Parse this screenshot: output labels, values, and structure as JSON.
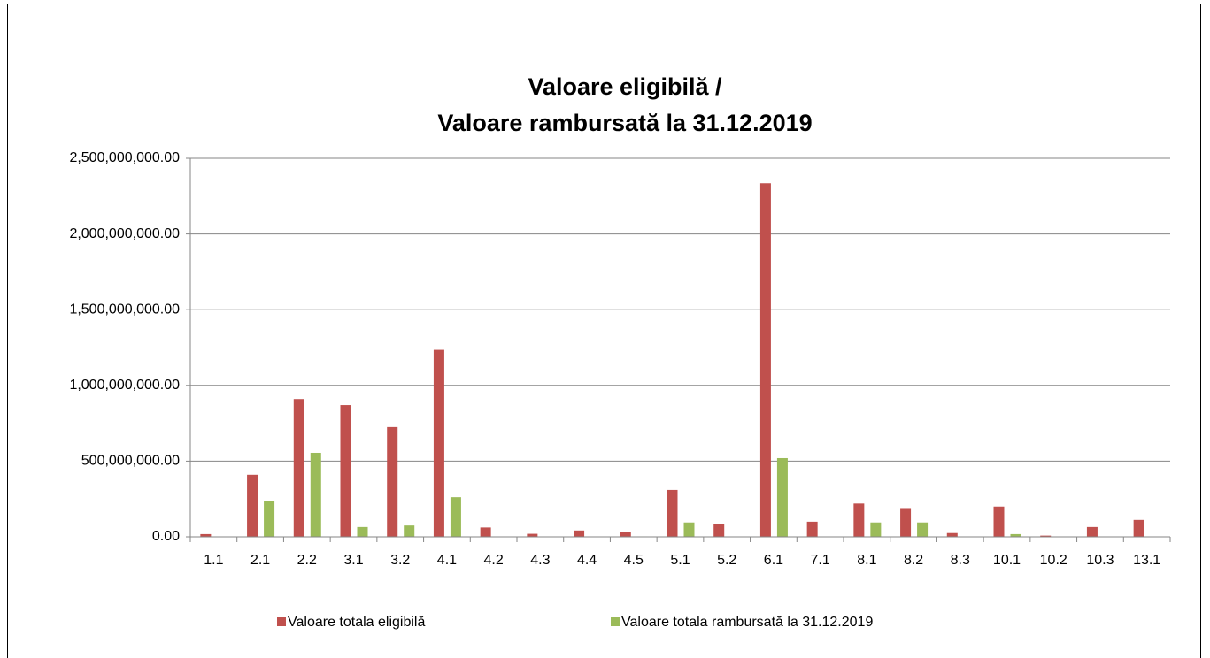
{
  "chart_data": {
    "type": "bar",
    "title_lines": [
      "Valoare eligibilă  /",
      "Valoare rambursată la 31.12.2019"
    ],
    "categories": [
      "1.1",
      "2.1",
      "2.2",
      "3.1",
      "3.2",
      "4.1",
      "4.2",
      "4.3",
      "4.4",
      "4.5",
      "5.1",
      "5.2",
      "6.1",
      "7.1",
      "8.1",
      "8.2",
      "8.3",
      "10.1",
      "10.2",
      "10.3",
      "13.1"
    ],
    "series": [
      {
        "name": "Valoare totala eligibilă",
        "color": "#c0504d",
        "values": [
          18000000,
          410000000,
          910000000,
          870000000,
          725000000,
          1235000000,
          62000000,
          20000000,
          42000000,
          33000000,
          310000000,
          82000000,
          2335000000,
          100000000,
          220000000,
          190000000,
          25000000,
          200000000,
          8000000,
          65000000,
          112000000
        ]
      },
      {
        "name": "Valoare totala rambursată la 31.12.2019",
        "color": "#9bbb59",
        "values": [
          0,
          235000000,
          555000000,
          65000000,
          75000000,
          262000000,
          0,
          0,
          0,
          3000000,
          95000000,
          2000000,
          520000000,
          0,
          95000000,
          95000000,
          0,
          18000000,
          0,
          0,
          0
        ]
      }
    ],
    "ylim": [
      0,
      2500000000
    ],
    "yticks": [
      {
        "value": 0,
        "label": "0.00"
      },
      {
        "value": 500000000,
        "label": "500,000,000.00"
      },
      {
        "value": 1000000000,
        "label": "1,000,000,000.00"
      },
      {
        "value": 1500000000,
        "label": "1,500,000,000.00"
      },
      {
        "value": 2000000000,
        "label": "2,000,000,000.00"
      },
      {
        "value": 2500000000,
        "label": "2,500,000,000.00"
      }
    ],
    "grid": true,
    "legend": "bottom"
  }
}
